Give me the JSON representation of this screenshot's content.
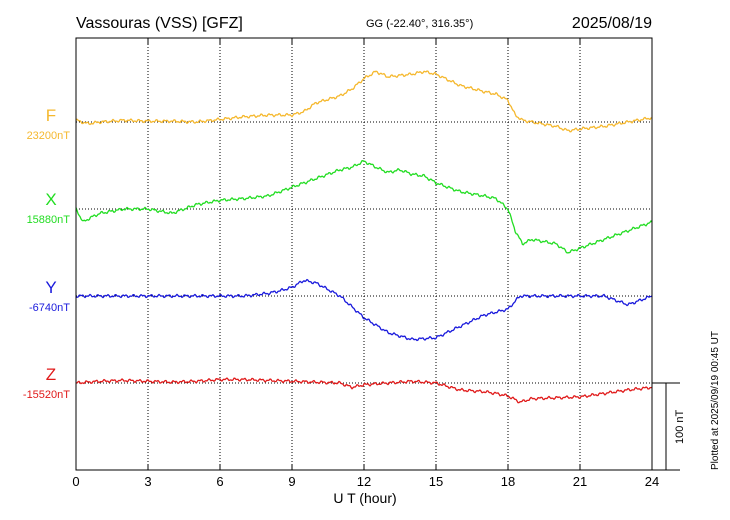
{
  "header": {
    "station": "Vassouras (VSS)  [GFZ]",
    "coords": "GG (-22.40°, 316.35°)",
    "date": "2025/08/19"
  },
  "side_note": "Plotted at 2025/09/19 00:45 UT",
  "scale_label": "100 nT",
  "chart_data": {
    "type": "line",
    "xlabel": "U T (hour)",
    "xlim": [
      0,
      24
    ],
    "xticks": [
      0,
      3,
      6,
      9,
      12,
      15,
      18,
      21,
      24
    ],
    "scale_bar_nT": 100,
    "grid": true,
    "series": [
      {
        "name": "F",
        "baseline_label": "23200nT",
        "color": "#f5b82e",
        "x": [
          0,
          0.5,
          1,
          2,
          3,
          4,
          5,
          6,
          7,
          8,
          9,
          9.5,
          10,
          11,
          11.5,
          12,
          12.5,
          13,
          14,
          14.5,
          15,
          16,
          17,
          17.5,
          18,
          18.3,
          18.6,
          19,
          20,
          20.5,
          21,
          22,
          23,
          24
        ],
        "values": [
          2,
          -2,
          0,
          2,
          1,
          1,
          0,
          3,
          6,
          8,
          8,
          12,
          22,
          30,
          38,
          50,
          58,
          52,
          55,
          58,
          55,
          42,
          35,
          32,
          25,
          8,
          2,
          0,
          -5,
          -10,
          -8,
          -5,
          0,
          5
        ]
      },
      {
        "name": "X",
        "baseline_label": "15880nT",
        "color": "#22dd22",
        "x": [
          0,
          0.3,
          0.6,
          1,
          2,
          3,
          4,
          5,
          6,
          7,
          8,
          9,
          10,
          11,
          11.5,
          12,
          12.5,
          13,
          13.5,
          14,
          14.5,
          15,
          16,
          17,
          17.5,
          18,
          18.3,
          18.6,
          19,
          20,
          20.5,
          21,
          22,
          23,
          24
        ],
        "values": [
          0,
          -15,
          -10,
          -5,
          0,
          0,
          -5,
          5,
          10,
          12,
          15,
          25,
          35,
          45,
          48,
          55,
          48,
          42,
          45,
          40,
          38,
          30,
          20,
          15,
          12,
          0,
          -25,
          -40,
          -35,
          -40,
          -50,
          -45,
          -35,
          -25,
          -15
        ]
      },
      {
        "name": "Y",
        "baseline_label": "-6740nT",
        "color": "#1a1adc",
        "x": [
          0,
          1,
          2,
          3,
          4,
          5,
          6,
          7,
          8,
          8.5,
          9,
          9.5,
          10,
          11,
          12,
          13,
          14,
          15,
          16,
          17,
          18,
          18.5,
          19,
          20,
          21,
          22,
          23,
          24
        ],
        "values": [
          0,
          0,
          0,
          0,
          0,
          0,
          0,
          0,
          3,
          6,
          10,
          18,
          15,
          0,
          -25,
          -42,
          -50,
          -48,
          -35,
          -22,
          -15,
          0,
          0,
          0,
          0,
          0,
          -10,
          0
        ]
      },
      {
        "name": "Z",
        "baseline_label": "-15520nT",
        "color": "#e01a1a",
        "x": [
          0,
          1,
          2,
          3,
          4,
          5,
          6,
          7,
          8,
          9,
          10,
          11,
          11.5,
          12,
          13,
          14,
          15,
          16,
          17,
          17.5,
          18,
          18.5,
          19,
          20,
          21,
          22,
          23,
          24
        ],
        "values": [
          0,
          2,
          3,
          2,
          1,
          2,
          4,
          4,
          3,
          2,
          1,
          0,
          -5,
          -2,
          0,
          2,
          0,
          -8,
          -10,
          -12,
          -15,
          -22,
          -18,
          -17,
          -16,
          -12,
          -8,
          -5
        ]
      }
    ]
  }
}
